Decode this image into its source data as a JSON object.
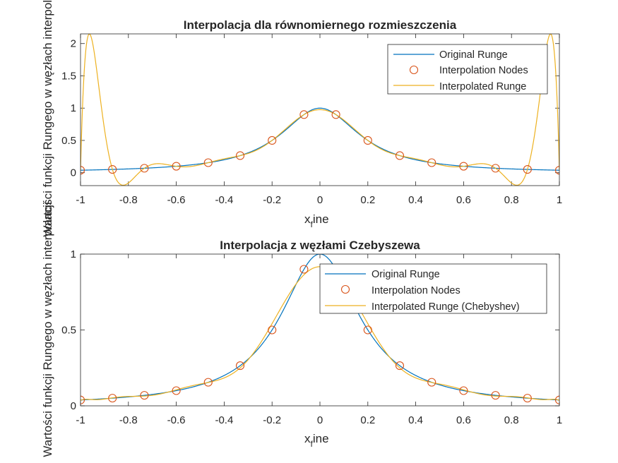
{
  "chart_data": [
    {
      "type": "line",
      "title": "Interpolacja dla równomiernego rozmieszczenia",
      "xlabel_main": "x",
      "xlabel_sub": "f",
      "xlabel_rest": "ine",
      "ylabel": "Wartości funkcji Rungego w węzłach interpolacji",
      "xlim": [
        -1,
        1
      ],
      "ylim": [
        -0.2,
        2.15
      ],
      "xticks": [
        "-1",
        "-0.8",
        "-0.6",
        "-0.4",
        "-0.2",
        "0",
        "0.2",
        "0.4",
        "0.6",
        "0.8",
        "1"
      ],
      "yticks": [
        "0",
        "0.5",
        "1",
        "1.5",
        "2"
      ],
      "yticks_values": [
        0,
        0.5,
        1,
        1.5,
        2
      ],
      "legend_position": "top-right",
      "series": [
        {
          "name": "Original Runge",
          "kind": "runge",
          "color": "#0072BD"
        },
        {
          "name": "Interpolation Nodes",
          "kind": "nodes",
          "color": "#D95319"
        },
        {
          "name": "Interpolated Runge",
          "kind": "interp-equal",
          "color": "#EDB120"
        }
      ],
      "nodes_x": [
        -1,
        -0.8667,
        -0.7333,
        -0.6,
        -0.4667,
        -0.3333,
        -0.2,
        -0.0667,
        0.0667,
        0.2,
        0.3333,
        0.4667,
        0.6,
        0.7333,
        0.8667,
        1
      ],
      "nodes_y": [
        0.0385,
        0.0506,
        0.0692,
        0.1,
        0.1552,
        0.2647,
        0.5,
        0.9,
        0.9,
        0.5,
        0.2647,
        0.1552,
        0.1,
        0.0692,
        0.0506,
        0.0385
      ]
    },
    {
      "type": "line",
      "title": "Interpolacja z węzłami Czebyszewa",
      "xlabel_main": "x",
      "xlabel_sub": "f",
      "xlabel_rest": "ine",
      "ylabel": "Wartości funkcji Rungego w węzłach interpolacji",
      "xlim": [
        -1,
        1
      ],
      "ylim": [
        0,
        1
      ],
      "xticks": [
        "-1",
        "-0.8",
        "-0.6",
        "-0.4",
        "-0.2",
        "0",
        "0.2",
        "0.4",
        "0.6",
        "0.8",
        "1"
      ],
      "yticks": [
        "0",
        "0.5",
        "1"
      ],
      "yticks_values": [
        0,
        0.5,
        1
      ],
      "legend_position": "top-right",
      "series": [
        {
          "name": "Original Runge",
          "kind": "runge",
          "color": "#0072BD"
        },
        {
          "name": "Interpolation Nodes",
          "kind": "nodes",
          "color": "#D95319"
        },
        {
          "name": "Interpolated Runge (Chebyshev)",
          "kind": "interp-cheb",
          "color": "#EDB120"
        }
      ],
      "nodes_x": [
        -1,
        -0.8667,
        -0.7333,
        -0.6,
        -0.4667,
        -0.3333,
        -0.2,
        -0.0667,
        0.0667,
        0.2,
        0.3333,
        0.4667,
        0.6,
        0.7333,
        0.8667,
        1
      ],
      "nodes_y": [
        0.0385,
        0.0506,
        0.0692,
        0.1,
        0.1552,
        0.2647,
        0.5,
        0.9,
        0.9,
        0.5,
        0.2647,
        0.1552,
        0.1,
        0.0692,
        0.0506,
        0.0385
      ]
    }
  ]
}
